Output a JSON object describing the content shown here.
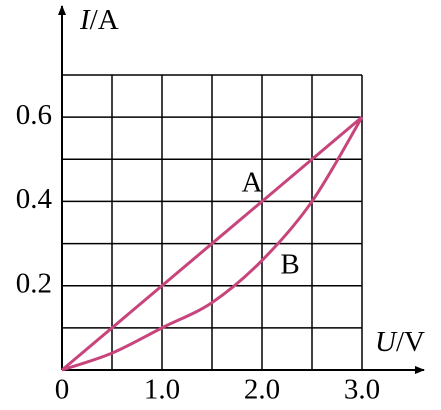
{
  "chart_data": {
    "type": "line",
    "y_label": {
      "symbol": "I",
      "unit": "/A"
    },
    "x_label": {
      "symbol": "U",
      "unit": "/V"
    },
    "origin_label": "0",
    "xlim": [
      0,
      3.0
    ],
    "ylim": [
      0,
      0.7
    ],
    "xticks": [
      {
        "value": 1,
        "label": "1.0"
      },
      {
        "value": 2,
        "label": "2.0"
      },
      {
        "value": 3,
        "label": "3.0"
      }
    ],
    "yticks": [
      0.2,
      0.4,
      0.6
    ],
    "xgrid": [
      0.5,
      1,
      1.5,
      2,
      2.5,
      3
    ],
    "ygrid": [
      0.1,
      0.2,
      0.3,
      0.4,
      0.5,
      0.6,
      0.7
    ],
    "grid": true,
    "series": [
      {
        "name": "A",
        "color": "#c8457c",
        "x": [
          0,
          3
        ],
        "values": [
          0,
          0.6
        ]
      },
      {
        "name": "B",
        "color": "#c8457c",
        "x": [
          0,
          0.5,
          1,
          1.5,
          2,
          2.5,
          3
        ],
        "values": [
          0,
          0.04,
          0.1,
          0.16,
          0.26,
          0.4,
          0.6
        ]
      }
    ]
  }
}
